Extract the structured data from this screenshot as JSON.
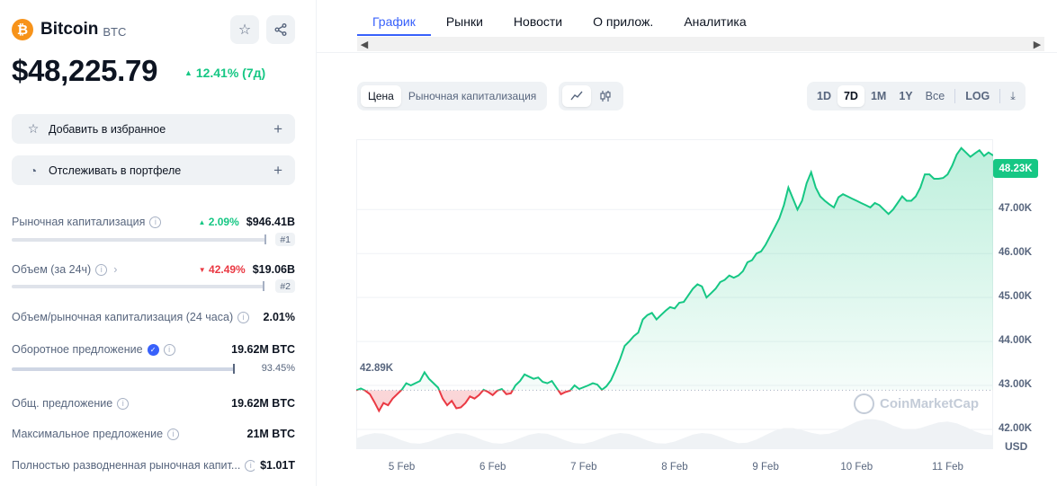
{
  "coin": {
    "logo_glyph": "₿",
    "name": "Bitcoin",
    "symbol": "BTC",
    "price": "$48,225.79",
    "change": "12.41% (7д)",
    "change_color": "#16c784"
  },
  "actions": {
    "watchlist": "Добавить в избранное",
    "portfolio": "Отслеживать в портфеле"
  },
  "stats": {
    "market_cap": {
      "label": "Рыночная капитализация",
      "change": "2.09%",
      "value": "$946.41B",
      "rank": "#1"
    },
    "volume": {
      "label": "Объем (за 24ч)",
      "change": "42.49%",
      "value": "$19.06B",
      "rank": "#2"
    },
    "vol_mcap": {
      "label": "Объем/рыночная капитализация (24 часа)",
      "value": "2.01%"
    },
    "circulating": {
      "label": "Оборотное предложение",
      "value": "19.62M BTC",
      "percent": "93.45%",
      "fill": 0.9345
    },
    "total": {
      "label": "Общ. предложение",
      "value": "19.62M BTC"
    },
    "max": {
      "label": "Максимальное предложение",
      "value": "21M BTC"
    },
    "fdv": {
      "label": "Полностью разводненная рыночная капит...",
      "value": "$1.01T"
    }
  },
  "tabs": [
    "График",
    "Рынки",
    "Новости",
    "О прилож.",
    "Аналитика"
  ],
  "chart_controls": {
    "type_toggle": [
      "Цена",
      "Рыночная капитализация"
    ],
    "ranges": [
      "1D",
      "7D",
      "1M",
      "1Y",
      "Все"
    ],
    "active_range": "7D",
    "log_label": "LOG"
  },
  "chart_data": {
    "type": "line",
    "currency": "USD",
    "watermark": "CoinMarketCap",
    "x_ticks": [
      "5 Feb",
      "6 Feb",
      "7 Feb",
      "8 Feb",
      "9 Feb",
      "10 Feb",
      "11 Feb"
    ],
    "y_ticks": [
      "42.00K",
      "43.00K",
      "44.00K",
      "45.00K",
      "46.00K",
      "47.00K"
    ],
    "ylim": [
      41.55,
      48.6
    ],
    "baseline": 42.89,
    "baseline_label": "42.89K",
    "last_label": "48.23K",
    "colors": {
      "up": "#16c784",
      "down": "#ea3943"
    },
    "series": [
      {
        "x": [
          4.5,
          4.55,
          4.6,
          4.65,
          4.7,
          4.75,
          4.8,
          4.85,
          4.9,
          5.0,
          5.05,
          5.1,
          5.2,
          5.25,
          5.3,
          5.35,
          5.4,
          5.45,
          5.5,
          5.55,
          5.6,
          5.65,
          5.7,
          5.75,
          5.8,
          5.85,
          5.9,
          5.95,
          6.0,
          6.05,
          6.1,
          6.15,
          6.2,
          6.25,
          6.3,
          6.35,
          6.4,
          6.45,
          6.5,
          6.55,
          6.6,
          6.65,
          6.7,
          6.75,
          6.8,
          6.85,
          6.9,
          6.95,
          7.0,
          7.05,
          7.1,
          7.15,
          7.2,
          7.25,
          7.3,
          7.35,
          7.4,
          7.45,
          7.5,
          7.55,
          7.6,
          7.65,
          7.7,
          7.75,
          7.8,
          7.85,
          7.9,
          7.95,
          8.0,
          8.05,
          8.1,
          8.15,
          8.2,
          8.25,
          8.3,
          8.35,
          8.4,
          8.45,
          8.5,
          8.55,
          8.6,
          8.65,
          8.7,
          8.75,
          8.8,
          8.85,
          8.9,
          8.95,
          9.0,
          9.05,
          9.1,
          9.15,
          9.2,
          9.25,
          9.3,
          9.35,
          9.4,
          9.45,
          9.5,
          9.55,
          9.6,
          9.65,
          9.7,
          9.75,
          9.8,
          9.85,
          9.9,
          9.95,
          10.0,
          10.05,
          10.1,
          10.15,
          10.2,
          10.25,
          10.3,
          10.35,
          10.4,
          10.45,
          10.5,
          10.55,
          10.6,
          10.65,
          10.7,
          10.75,
          10.8,
          10.85,
          10.9,
          10.95,
          11.0,
          11.05,
          11.1,
          11.15,
          11.2,
          11.25,
          11.3,
          11.35,
          11.4,
          11.45,
          11.5
        ],
        "y": [
          42.89,
          42.93,
          42.88,
          42.8,
          42.62,
          42.42,
          42.6,
          42.55,
          42.7,
          42.9,
          43.05,
          43.0,
          43.1,
          43.3,
          43.15,
          43.05,
          42.95,
          42.7,
          42.55,
          42.65,
          42.48,
          42.5,
          42.6,
          42.75,
          42.7,
          42.78,
          42.9,
          42.85,
          42.78,
          42.88,
          42.92,
          42.8,
          42.82,
          43.0,
          43.1,
          43.25,
          43.2,
          43.15,
          43.18,
          43.08,
          43.05,
          43.1,
          42.95,
          42.8,
          42.85,
          42.88,
          43.0,
          42.92,
          42.96,
          43.0,
          43.05,
          43.02,
          42.9,
          42.98,
          43.12,
          43.35,
          43.6,
          43.9,
          44.0,
          44.12,
          44.2,
          44.5,
          44.6,
          44.65,
          44.5,
          44.6,
          44.7,
          44.78,
          44.75,
          44.88,
          44.9,
          45.05,
          45.2,
          45.3,
          45.25,
          45.0,
          45.1,
          45.2,
          45.35,
          45.4,
          45.5,
          45.45,
          45.5,
          45.6,
          45.8,
          45.85,
          46.0,
          46.05,
          46.2,
          46.4,
          46.6,
          46.8,
          47.1,
          47.5,
          47.25,
          47.0,
          47.2,
          47.6,
          47.85,
          47.5,
          47.3,
          47.2,
          47.12,
          47.05,
          47.28,
          47.35,
          47.3,
          47.25,
          47.2,
          47.15,
          47.1,
          47.05,
          47.15,
          47.1,
          47.0,
          46.9,
          47.0,
          47.15,
          47.3,
          47.2,
          47.2,
          47.3,
          47.5,
          47.8,
          47.8,
          47.7,
          47.7,
          47.72,
          47.8,
          48.0,
          48.25,
          48.4,
          48.3,
          48.2,
          48.28,
          48.35,
          48.22,
          48.3,
          48.23
        ]
      }
    ]
  }
}
